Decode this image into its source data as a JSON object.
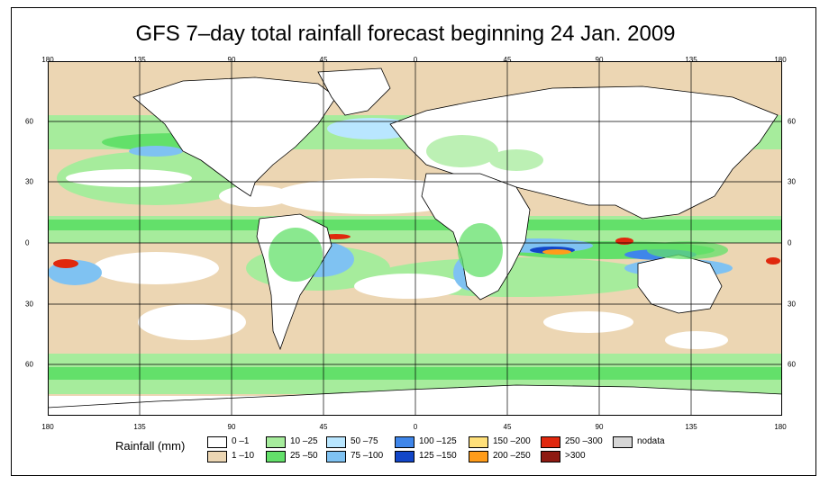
{
  "title": "GFS 7–day total rainfall forecast beginning 24 Jan. 2009",
  "lon_ticks_top": [
    "180",
    "135",
    "90",
    "45",
    "0",
    "45",
    "90",
    "135",
    "180"
  ],
  "lon_ticks_bottom": [
    "180",
    "135",
    "90",
    "45",
    "0",
    "45",
    "90",
    "135",
    "180"
  ],
  "lat_ticks_left": [
    "60",
    "30",
    "0",
    "30",
    "60"
  ],
  "lat_ticks_right": [
    "60",
    "30",
    "0",
    "30",
    "60"
  ],
  "legend": {
    "title": "Rainfall (mm)",
    "items": [
      {
        "label": "0 –1",
        "color": "#ffffff"
      },
      {
        "label": "1 –10",
        "color": "#ecd6b3"
      },
      {
        "label": "10 –25",
        "color": "#a6ec9c"
      },
      {
        "label": "25 –50",
        "color": "#63e06a"
      },
      {
        "label": "50 –75",
        "color": "#b9e6ff"
      },
      {
        "label": "75 –100",
        "color": "#7fc2f2"
      },
      {
        "label": "100 –125",
        "color": "#3f86ea"
      },
      {
        "label": "125 –150",
        "color": "#1246c8"
      },
      {
        "label": "150 –200",
        "color": "#ffe07a"
      },
      {
        "label": "200 –250",
        "color": "#ff9c1a"
      },
      {
        "label": "250 –300",
        "color": "#e0280e"
      },
      {
        "label": ">300",
        "color": "#8e1a12"
      },
      {
        "label": "nodata",
        "color": "#d6d6d6"
      }
    ]
  }
}
